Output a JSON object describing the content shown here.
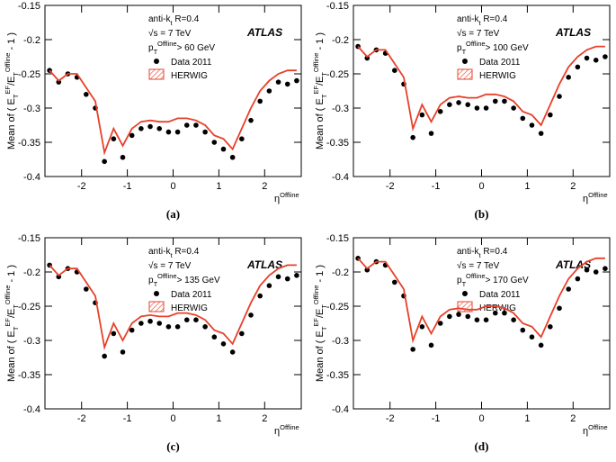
{
  "chart_data": [
    {
      "type": "scatter",
      "panel": "(a)",
      "ylabel": [
        "Mean of ( E",
        "T",
        "EF",
        "/E",
        "T",
        "Offline",
        " - 1 )"
      ],
      "xlabel": [
        "η",
        "Offline"
      ],
      "algo": [
        "anti-k",
        "t",
        " R=0.4"
      ],
      "energy": "√s = 7 TeV",
      "pt": [
        "p",
        "T",
        "Offline",
        "> 60 GeV"
      ],
      "experiment": "ATLAS",
      "x": [
        -2.7,
        -2.5,
        -2.3,
        -2.1,
        -1.9,
        -1.7,
        -1.5,
        -1.3,
        -1.1,
        -0.9,
        -0.7,
        -0.5,
        -0.3,
        -0.1,
        0.1,
        0.3,
        0.5,
        0.7,
        0.9,
        1.1,
        1.3,
        1.5,
        1.7,
        1.9,
        2.1,
        2.3,
        2.5,
        2.7
      ],
      "xlim": [
        -2.8,
        2.8
      ],
      "xticks": [
        -2,
        -1,
        0,
        1,
        2
      ],
      "ylim": [
        -0.4,
        -0.15
      ],
      "yticks": [
        -0.4,
        -0.35,
        -0.3,
        -0.25,
        -0.2,
        -0.15
      ],
      "series": [
        {
          "name": "Data 2011",
          "color": "#000000",
          "values": [
            -0.245,
            -0.262,
            -0.25,
            -0.255,
            -0.28,
            -0.3,
            -0.378,
            -0.345,
            -0.372,
            -0.34,
            -0.33,
            -0.327,
            -0.33,
            -0.335,
            -0.335,
            -0.325,
            -0.325,
            -0.335,
            -0.35,
            -0.36,
            -0.372,
            -0.345,
            -0.318,
            -0.29,
            -0.275,
            -0.262,
            -0.265,
            -0.26
          ]
        },
        {
          "name": "HERWIG",
          "color": "#e8402a",
          "values": [
            -0.245,
            -0.26,
            -0.25,
            -0.25,
            -0.27,
            -0.29,
            -0.365,
            -0.33,
            -0.355,
            -0.33,
            -0.32,
            -0.318,
            -0.32,
            -0.32,
            -0.315,
            -0.315,
            -0.318,
            -0.325,
            -0.34,
            -0.345,
            -0.36,
            -0.33,
            -0.3,
            -0.275,
            -0.26,
            -0.25,
            -0.245,
            -0.245
          ]
        }
      ]
    },
    {
      "type": "scatter",
      "panel": "(b)",
      "ylabel": [
        "Mean of ( E",
        "T",
        "EF",
        "/E",
        "T",
        "Offline",
        " - 1 )"
      ],
      "xlabel": [
        "η",
        "Offline"
      ],
      "algo": [
        "anti-k",
        "t",
        " R=0.4"
      ],
      "energy": "√s = 7 TeV",
      "pt": [
        "p",
        "T",
        "Offline",
        "> 100 GeV"
      ],
      "experiment": "ATLAS",
      "x": [
        -2.7,
        -2.5,
        -2.3,
        -2.1,
        -1.9,
        -1.7,
        -1.5,
        -1.3,
        -1.1,
        -0.9,
        -0.7,
        -0.5,
        -0.3,
        -0.1,
        0.1,
        0.3,
        0.5,
        0.7,
        0.9,
        1.1,
        1.3,
        1.5,
        1.7,
        1.9,
        2.1,
        2.3,
        2.5,
        2.7
      ],
      "xlim": [
        -2.8,
        2.8
      ],
      "xticks": [
        -2,
        -1,
        0,
        1,
        2
      ],
      "ylim": [
        -0.4,
        -0.15
      ],
      "yticks": [
        -0.4,
        -0.35,
        -0.3,
        -0.25,
        -0.2,
        -0.15
      ],
      "series": [
        {
          "name": "Data 2011",
          "color": "#000000",
          "values": [
            -0.21,
            -0.227,
            -0.215,
            -0.22,
            -0.245,
            -0.265,
            -0.343,
            -0.31,
            -0.337,
            -0.305,
            -0.295,
            -0.292,
            -0.295,
            -0.3,
            -0.3,
            -0.29,
            -0.29,
            -0.3,
            -0.315,
            -0.325,
            -0.337,
            -0.31,
            -0.283,
            -0.255,
            -0.24,
            -0.227,
            -0.23,
            -0.225
          ]
        },
        {
          "name": "HERWIG",
          "color": "#e8402a",
          "values": [
            -0.21,
            -0.225,
            -0.215,
            -0.215,
            -0.235,
            -0.255,
            -0.33,
            -0.295,
            -0.32,
            -0.295,
            -0.285,
            -0.283,
            -0.285,
            -0.285,
            -0.28,
            -0.28,
            -0.283,
            -0.29,
            -0.305,
            -0.31,
            -0.325,
            -0.295,
            -0.265,
            -0.24,
            -0.225,
            -0.215,
            -0.21,
            -0.21
          ]
        }
      ]
    },
    {
      "type": "scatter",
      "panel": "(c)",
      "ylabel": [
        "Mean of ( E",
        "T",
        "EF",
        "/E",
        "T",
        "Offline",
        " - 1 )"
      ],
      "xlabel": [
        "η",
        "Offline"
      ],
      "algo": [
        "anti-k",
        "t",
        " R=0.4"
      ],
      "energy": "√s = 7 TeV",
      "pt": [
        "p",
        "T",
        "Offline",
        "> 135 GeV"
      ],
      "experiment": "ATLAS",
      "x": [
        -2.7,
        -2.5,
        -2.3,
        -2.1,
        -1.9,
        -1.7,
        -1.5,
        -1.3,
        -1.1,
        -0.9,
        -0.7,
        -0.5,
        -0.3,
        -0.1,
        0.1,
        0.3,
        0.5,
        0.7,
        0.9,
        1.1,
        1.3,
        1.5,
        1.7,
        1.9,
        2.1,
        2.3,
        2.5,
        2.7
      ],
      "xlim": [
        -2.8,
        2.8
      ],
      "xticks": [
        -2,
        -1,
        0,
        1,
        2
      ],
      "ylim": [
        -0.4,
        -0.15
      ],
      "yticks": [
        -0.4,
        -0.35,
        -0.3,
        -0.25,
        -0.2,
        -0.15
      ],
      "series": [
        {
          "name": "Data 2011",
          "color": "#000000",
          "values": [
            -0.19,
            -0.207,
            -0.195,
            -0.2,
            -0.225,
            -0.245,
            -0.323,
            -0.29,
            -0.317,
            -0.285,
            -0.275,
            -0.272,
            -0.275,
            -0.28,
            -0.28,
            -0.27,
            -0.27,
            -0.28,
            -0.295,
            -0.305,
            -0.317,
            -0.29,
            -0.263,
            -0.235,
            -0.22,
            -0.207,
            -0.21,
            -0.205
          ]
        },
        {
          "name": "HERWIG",
          "color": "#e8402a",
          "values": [
            -0.19,
            -0.205,
            -0.195,
            -0.195,
            -0.215,
            -0.235,
            -0.31,
            -0.275,
            -0.3,
            -0.275,
            -0.265,
            -0.263,
            -0.265,
            -0.265,
            -0.26,
            -0.26,
            -0.263,
            -0.27,
            -0.285,
            -0.29,
            -0.305,
            -0.275,
            -0.245,
            -0.22,
            -0.205,
            -0.195,
            -0.19,
            -0.19
          ]
        }
      ]
    },
    {
      "type": "scatter",
      "panel": "(d)",
      "ylabel": [
        "Mean of ( E",
        "T",
        "EF",
        "/E",
        "T",
        "Offline",
        " - 1 )"
      ],
      "xlabel": [
        "η",
        "Offline"
      ],
      "algo": [
        "anti-k",
        "t",
        " R=0.4"
      ],
      "energy": "√s = 7 TeV",
      "pt": [
        "p",
        "T",
        "Offline",
        "> 170 GeV"
      ],
      "experiment": "ATLAS",
      "x": [
        -2.7,
        -2.5,
        -2.3,
        -2.1,
        -1.9,
        -1.7,
        -1.5,
        -1.3,
        -1.1,
        -0.9,
        -0.7,
        -0.5,
        -0.3,
        -0.1,
        0.1,
        0.3,
        0.5,
        0.7,
        0.9,
        1.1,
        1.3,
        1.5,
        1.7,
        1.9,
        2.1,
        2.3,
        2.5,
        2.7
      ],
      "xlim": [
        -2.8,
        2.8
      ],
      "xticks": [
        -2,
        -1,
        0,
        1,
        2
      ],
      "ylim": [
        -0.4,
        -0.15
      ],
      "yticks": [
        -0.4,
        -0.35,
        -0.3,
        -0.25,
        -0.2,
        -0.15
      ],
      "series": [
        {
          "name": "Data 2011",
          "color": "#000000",
          "values": [
            -0.18,
            -0.197,
            -0.185,
            -0.19,
            -0.215,
            -0.235,
            -0.313,
            -0.28,
            -0.307,
            -0.275,
            -0.265,
            -0.262,
            -0.265,
            -0.27,
            -0.27,
            -0.26,
            -0.26,
            -0.27,
            -0.285,
            -0.295,
            -0.307,
            -0.28,
            -0.253,
            -0.225,
            -0.21,
            -0.197,
            -0.2,
            -0.195
          ]
        },
        {
          "name": "HERWIG",
          "color": "#e8402a",
          "values": [
            -0.18,
            -0.195,
            -0.185,
            -0.185,
            -0.205,
            -0.225,
            -0.3,
            -0.265,
            -0.29,
            -0.265,
            -0.255,
            -0.253,
            -0.255,
            -0.255,
            -0.25,
            -0.25,
            -0.253,
            -0.26,
            -0.275,
            -0.28,
            -0.295,
            -0.265,
            -0.235,
            -0.21,
            -0.195,
            -0.185,
            -0.18,
            -0.18
          ]
        }
      ]
    }
  ]
}
